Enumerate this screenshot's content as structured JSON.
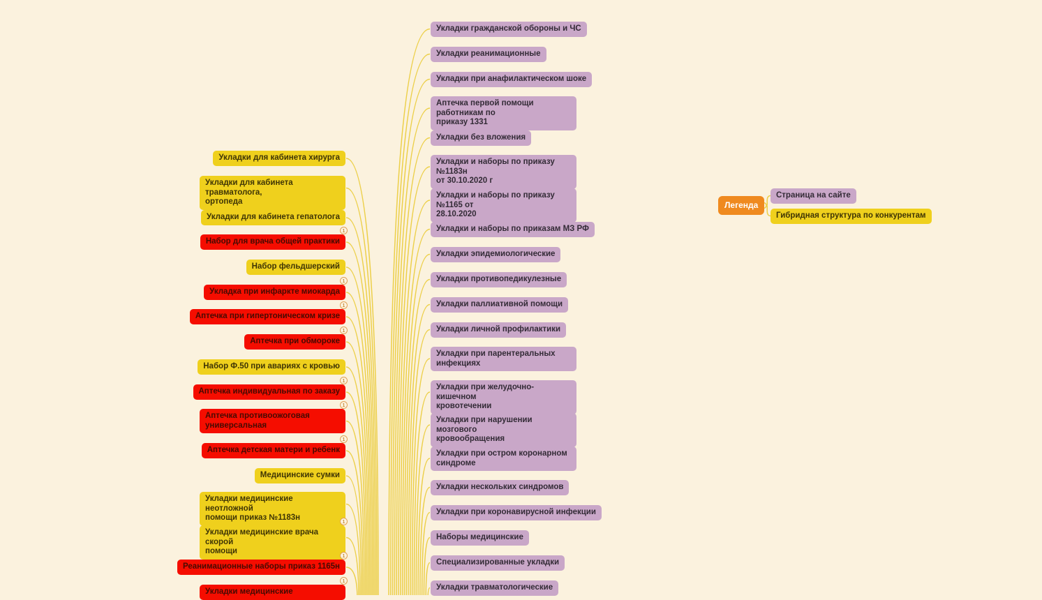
{
  "app": {
    "background_color": "#FBF2DE",
    "connector_color": "#ECCF48"
  },
  "badge": {
    "label": "1"
  },
  "colors": {
    "topic_purple": "#C9A7C8",
    "topic_yellow": "#EFD01D",
    "topic_red": "#F50D00",
    "legend_orange": "#EF8A1F"
  },
  "center_branch": {
    "color": "purple",
    "nodes": [
      {
        "label": "Укладки гражданской обороны и ЧС",
        "badge": false
      },
      {
        "label": "Укладки реанимационные",
        "badge": false
      },
      {
        "label": "Укладки при анафилактическом шоке",
        "badge": false
      },
      {
        "label": "Аптечка первой помощи работникам по\nприказу 1331",
        "badge": false
      },
      {
        "label": "Укладки без вложения",
        "badge": false
      },
      {
        "label": "Укладки и наборы по приказу №1183н\nот 30.10.2020 г",
        "badge": false
      },
      {
        "label": "Укладки и наборы по приказу №1165 от\n28.10.2020",
        "badge": false
      },
      {
        "label": "Укладки и наборы по приказам МЗ РФ",
        "badge": false
      },
      {
        "label": "Укладки эпидемиологические",
        "badge": false
      },
      {
        "label": "Укладки противопедикулезные",
        "badge": false
      },
      {
        "label": "Укладки паллиативной помощи",
        "badge": false
      },
      {
        "label": "Укладки личной профилактики",
        "badge": false
      },
      {
        "label": "Укладки при парентеральных\nинфекциях",
        "badge": false
      },
      {
        "label": "Укладки при желудочно-кишечном\nкровотечении",
        "badge": false
      },
      {
        "label": "Укладки при нарушении мозгового\nкровообращения",
        "badge": false
      },
      {
        "label": "Укладки при остром коронарном\nсиндроме",
        "badge": false
      },
      {
        "label": "Укладки нескольких синдромов",
        "badge": false
      },
      {
        "label": "Укладки при коронавирусной инфекции",
        "badge": false
      },
      {
        "label": "Наборы медицинские",
        "badge": false
      },
      {
        "label": "Специализированные укладки",
        "badge": false
      },
      {
        "label": "Укладки травматологические",
        "badge": false
      }
    ]
  },
  "left_branch": {
    "nodes": [
      {
        "label": "Укладки для кабинета хирурга",
        "color": "yellow",
        "badge": false
      },
      {
        "label": "Укладки для кабинета травматолога,\nортопеда",
        "color": "yellow",
        "badge": false
      },
      {
        "label": "Укладки для кабинета гепатолога",
        "color": "yellow",
        "badge": false
      },
      {
        "label": "Набор для врача общей практики",
        "color": "red",
        "badge": true
      },
      {
        "label": "Набор фельдшерский",
        "color": "yellow",
        "badge": false
      },
      {
        "label": "Укладка при инфаркте миокарда",
        "color": "red",
        "badge": true
      },
      {
        "label": "Аптечка при гипертоническом кризе",
        "color": "red",
        "badge": true
      },
      {
        "label": "Аптечка при обмороке",
        "color": "red",
        "badge": true
      },
      {
        "label": "Набор Ф.50 при авариях с кровью",
        "color": "yellow",
        "badge": false
      },
      {
        "label": "Аптечка индивидуальная по заказу",
        "color": "red",
        "badge": true
      },
      {
        "label": "Аптечка противоожоговая\nуниверсальная",
        "color": "red",
        "badge": true
      },
      {
        "label": "Аптечка детская матери и ребенк",
        "color": "red",
        "badge": true
      },
      {
        "label": "Медицинские сумки",
        "color": "yellow",
        "badge": false
      },
      {
        "label": "Укладки медицинские неотложной\nпомощи приказ №1183н",
        "color": "yellow",
        "badge": false
      },
      {
        "label": "Укладки медицинские врача скорой\nпомощи",
        "color": "yellow",
        "badge": true
      },
      {
        "label": "Реанимационные наборы приказ 1165н",
        "color": "red",
        "badge": true
      },
      {
        "label": "Укладки медицинские",
        "color": "red",
        "badge": true
      }
    ]
  },
  "legend": {
    "root_label": "Легенда",
    "items": [
      {
        "label": "Страница на сайте",
        "color": "purple"
      },
      {
        "label": "Гибридная структура по конкурентам",
        "color": "yellow"
      }
    ]
  }
}
